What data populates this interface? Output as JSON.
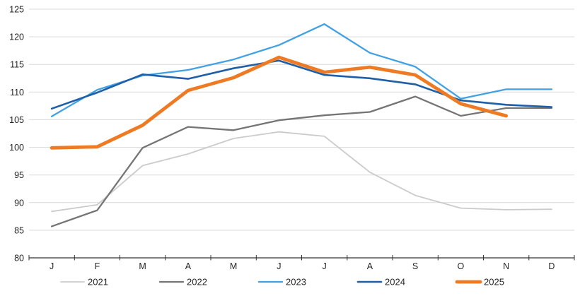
{
  "chart_data": {
    "type": "line",
    "title": "",
    "xlabel": "",
    "ylabel": "",
    "categories": [
      "J",
      "F",
      "M",
      "A",
      "M",
      "J",
      "J",
      "A",
      "S",
      "O",
      "N",
      "D"
    ],
    "yticks": [
      80,
      85,
      90,
      95,
      100,
      105,
      110,
      115,
      120,
      125
    ],
    "ylim": [
      80,
      125
    ],
    "grid": true,
    "legend_position": "bottom",
    "series": [
      {
        "name": "2021",
        "color": "#CBCBCB",
        "width": 1.8,
        "values": [
          88.4,
          89.6,
          96.7,
          98.8,
          101.6,
          102.8,
          102.0,
          95.5,
          91.3,
          89.0,
          88.7,
          88.8
        ]
      },
      {
        "name": "2022",
        "color": "#757575",
        "width": 2.3,
        "values": [
          85.7,
          88.6,
          99.9,
          103.7,
          103.1,
          104.9,
          105.8,
          106.4,
          109.2,
          105.7,
          107.1,
          107.1
        ]
      },
      {
        "name": "2023",
        "color": "#41A1E3",
        "width": 2.3,
        "values": [
          105.6,
          110.4,
          113.0,
          114.0,
          115.9,
          118.5,
          122.3,
          117.1,
          114.6,
          108.8,
          110.5,
          110.5
        ]
      },
      {
        "name": "2024",
        "color": "#1F5FA8",
        "width": 2.6,
        "values": [
          107.0,
          109.9,
          113.2,
          112.4,
          114.3,
          115.7,
          113.1,
          112.5,
          111.4,
          108.5,
          107.7,
          107.3
        ]
      },
      {
        "name": "2025",
        "color": "#EE7B23",
        "width": 4.8,
        "values": [
          99.9,
          100.1,
          104.0,
          110.3,
          112.6,
          116.3,
          113.6,
          114.5,
          113.1,
          107.9,
          105.7,
          null
        ]
      }
    ],
    "colors": {
      "grid": "#D9D9D9",
      "axis": "#333333",
      "text": "#262626"
    }
  }
}
